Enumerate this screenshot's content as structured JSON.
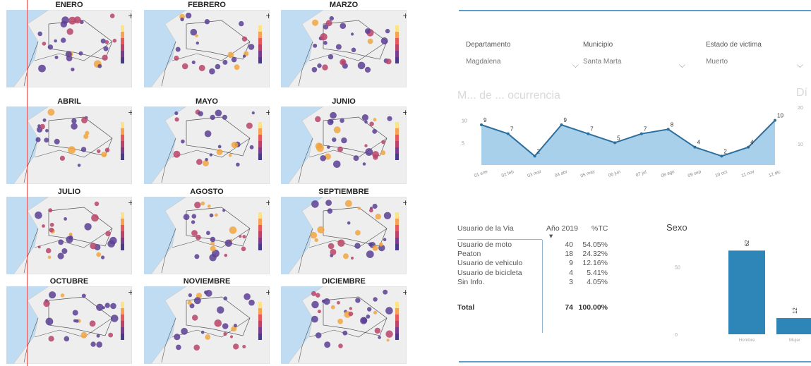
{
  "maps": {
    "months": [
      "ENERO",
      "FEBRERO",
      "MARZO",
      "ABRIL",
      "MAYO",
      "JUNIO",
      "JULIO",
      "AGOSTO",
      "SEPTIEMBRE",
      "OCTUBRE",
      "NOVIEMBRE",
      "DICIEMBRE"
    ]
  },
  "filters": [
    {
      "label": "Departamento",
      "value": "Magdalena"
    },
    {
      "label": "Municipio",
      "value": "Santa Marta"
    },
    {
      "label": "Estado de victima",
      "value": "Muerto"
    }
  ],
  "faded_titles": {
    "left": "M... de ... ocurrencia",
    "right": "Dí"
  },
  "colors": {
    "accent": "#5c9ec9",
    "area_fill": "#a9d0ea",
    "line": "#2d6f9c",
    "bar": "#2e86b8",
    "map_water": "#bfdcf2",
    "map_land": "#eeeeee"
  },
  "chart_data": [
    {
      "type": "area",
      "title": "",
      "categories": [
        "01 ene",
        "02 feb",
        "03 mar",
        "04 abr",
        "05 may",
        "06 jun",
        "07 jul",
        "08 ago",
        "09 sep",
        "10 oct",
        "11 nov",
        "12 dic"
      ],
      "values": [
        9,
        7,
        2,
        9,
        7,
        5,
        7,
        8,
        4,
        2,
        4,
        10
      ],
      "y_ticks": [
        "10",
        "5"
      ],
      "ylim": [
        0,
        12
      ],
      "grid": false
    },
    {
      "type": "bar",
      "title": "Sexo",
      "categories": [
        "Hombre",
        "Mujer"
      ],
      "values": [
        62,
        12
      ],
      "y_ticks": [
        "50",
        "0"
      ],
      "ylim": [
        0,
        70
      ]
    },
    {
      "type": "table",
      "columns": [
        "Usuario de la Via",
        "Año 2019",
        "%TC"
      ],
      "rows": [
        [
          "Usuario de moto",
          "40",
          "54.05%"
        ],
        [
          "Peaton",
          "18",
          "24.32%"
        ],
        [
          "Usuario de vehiculo",
          "9",
          "12.16%"
        ],
        [
          "Usuario de bicicleta",
          "4",
          "5.41%"
        ],
        [
          "Sin Info.",
          "3",
          "4.05%"
        ]
      ],
      "total": [
        "Total",
        "74",
        "100.00%"
      ],
      "sort_indicator": "▾"
    }
  ],
  "dua_stub_ticks": [
    "20",
    "10"
  ]
}
